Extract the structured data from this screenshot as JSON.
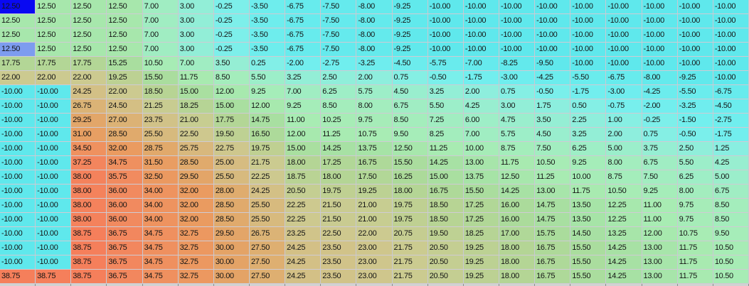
{
  "chart_data": {
    "type": "heatmap",
    "rows": 20,
    "cols": 21,
    "value_format": "two_decimals",
    "values": [
      [
        12.5,
        12.5,
        12.5,
        12.5,
        7.0,
        3.0,
        -0.25,
        -3.5,
        -6.75,
        -7.5,
        -8.0,
        -9.25,
        -10.0,
        -10.0,
        -10.0,
        -10.0,
        -10.0,
        -10.0,
        -10.0,
        -10.0,
        -10.0
      ],
      [
        12.5,
        12.5,
        12.5,
        12.5,
        7.0,
        3.0,
        -0.25,
        -3.5,
        -6.75,
        -7.5,
        -8.0,
        -9.25,
        -10.0,
        -10.0,
        -10.0,
        -10.0,
        -10.0,
        -10.0,
        -10.0,
        -10.0,
        -10.0
      ],
      [
        12.5,
        12.5,
        12.5,
        12.5,
        7.0,
        3.0,
        -0.25,
        -3.5,
        -6.75,
        -7.5,
        -8.0,
        -9.25,
        -10.0,
        -10.0,
        -10.0,
        -10.0,
        -10.0,
        -10.0,
        -10.0,
        -10.0,
        -10.0
      ],
      [
        12.5,
        12.5,
        12.5,
        12.5,
        7.0,
        3.0,
        -0.25,
        -3.5,
        -6.75,
        -7.5,
        -8.0,
        -9.25,
        -10.0,
        -10.0,
        -10.0,
        -10.0,
        -10.0,
        -10.0,
        -10.0,
        -10.0,
        -10.0
      ],
      [
        17.75,
        17.75,
        17.75,
        15.25,
        10.5,
        7.0,
        3.5,
        0.25,
        -2.0,
        -2.75,
        -3.25,
        -4.5,
        -5.75,
        -7.0,
        -8.25,
        -9.5,
        -10.0,
        -10.0,
        -10.0,
        -10.0,
        -10.0
      ],
      [
        22.0,
        22.0,
        22.0,
        19.25,
        15.5,
        11.75,
        8.5,
        5.5,
        3.25,
        2.5,
        2.0,
        0.75,
        -0.5,
        -1.75,
        -3.0,
        -4.25,
        -5.5,
        -6.75,
        -8.0,
        -9.25,
        -10.0
      ],
      [
        -10.0,
        -10.0,
        24.25,
        22.0,
        18.5,
        15.0,
        12.0,
        9.25,
        7.0,
        6.25,
        5.75,
        4.5,
        3.25,
        2.0,
        0.75,
        -0.5,
        -1.75,
        -3.0,
        -4.25,
        -5.5,
        -6.75
      ],
      [
        -10.0,
        -10.0,
        26.75,
        24.5,
        21.25,
        18.25,
        15.0,
        12.0,
        9.25,
        8.5,
        8.0,
        6.75,
        5.5,
        4.25,
        3.0,
        1.75,
        0.5,
        -0.75,
        -2.0,
        -3.25,
        -4.5
      ],
      [
        -10.0,
        -10.0,
        29.25,
        27.0,
        23.75,
        21.0,
        17.75,
        14.75,
        11.0,
        10.25,
        9.75,
        8.5,
        7.25,
        6.0,
        4.75,
        3.5,
        2.25,
        1.0,
        -0.25,
        -1.5,
        -2.75
      ],
      [
        -10.0,
        -10.0,
        31.0,
        28.5,
        25.5,
        22.5,
        19.5,
        16.5,
        12.0,
        11.25,
        10.75,
        9.5,
        8.25,
        7.0,
        5.75,
        4.5,
        3.25,
        2.0,
        0.75,
        -0.5,
        -1.75
      ],
      [
        -10.0,
        -10.0,
        34.5,
        32.0,
        28.75,
        25.75,
        22.75,
        19.75,
        15.0,
        14.25,
        13.75,
        12.5,
        11.25,
        10.0,
        8.75,
        7.5,
        6.25,
        5.0,
        3.75,
        2.5,
        1.25
      ],
      [
        -10.0,
        -10.0,
        37.25,
        34.75,
        31.5,
        28.5,
        25.0,
        21.75,
        18.0,
        17.25,
        16.75,
        15.5,
        14.25,
        13.0,
        11.75,
        10.5,
        9.25,
        8.0,
        6.75,
        5.5,
        4.25
      ],
      [
        -10.0,
        -10.0,
        38.0,
        35.75,
        32.5,
        29.5,
        25.5,
        22.25,
        18.75,
        18.0,
        17.5,
        16.25,
        15.0,
        13.75,
        12.5,
        11.25,
        10.0,
        8.75,
        7.5,
        6.25,
        5.0
      ],
      [
        -10.0,
        -10.0,
        38.0,
        36.0,
        34.0,
        32.0,
        28.0,
        24.25,
        20.5,
        19.75,
        19.25,
        18.0,
        16.75,
        15.5,
        14.25,
        13.0,
        11.75,
        10.5,
        9.25,
        8.0,
        6.75
      ],
      [
        -10.0,
        -10.0,
        38.0,
        36.0,
        34.0,
        32.0,
        28.5,
        25.5,
        22.25,
        21.5,
        21.0,
        19.75,
        18.5,
        17.25,
        16.0,
        14.75,
        13.5,
        12.25,
        11.0,
        9.75,
        8.5
      ],
      [
        -10.0,
        -10.0,
        38.0,
        36.0,
        34.0,
        32.0,
        28.5,
        25.5,
        22.25,
        21.5,
        21.0,
        19.75,
        18.5,
        17.25,
        16.0,
        14.75,
        13.5,
        12.25,
        11.0,
        9.75,
        8.5
      ],
      [
        -10.0,
        -10.0,
        38.75,
        36.75,
        34.75,
        32.75,
        29.5,
        26.75,
        23.25,
        22.5,
        22.0,
        20.75,
        19.5,
        18.25,
        17.0,
        15.75,
        14.5,
        13.25,
        12.0,
        10.75,
        9.5
      ],
      [
        -10.0,
        -10.0,
        38.75,
        36.75,
        34.75,
        32.75,
        30.0,
        27.5,
        24.25,
        23.5,
        23.0,
        21.75,
        20.5,
        19.25,
        18.0,
        16.75,
        15.5,
        14.25,
        13.0,
        11.75,
        10.5
      ],
      [
        -10.0,
        -10.0,
        38.75,
        36.75,
        34.75,
        32.75,
        30.0,
        27.5,
        24.25,
        23.5,
        23.0,
        21.75,
        20.5,
        19.25,
        18.0,
        16.75,
        15.5,
        14.25,
        13.0,
        11.75,
        10.5
      ],
      [
        38.75,
        38.75,
        38.75,
        36.75,
        34.75,
        32.75,
        30.0,
        27.5,
        24.25,
        23.5,
        23.0,
        21.75,
        20.5,
        19.25,
        18.0,
        16.75,
        15.5,
        14.25,
        13.0,
        11.75,
        10.5
      ]
    ],
    "colormap_stops": [
      {
        "v": -10.0,
        "c": "#5FE8EC"
      },
      {
        "v": -1.0,
        "c": "#74EFEE"
      },
      {
        "v": 0.0,
        "c": "#80EFE8"
      },
      {
        "v": 2.0,
        "c": "#8EEEDD"
      },
      {
        "v": 5.0,
        "c": "#9BEECB"
      },
      {
        "v": 8.0,
        "c": "#A3EDBE"
      },
      {
        "v": 11.0,
        "c": "#A8ECB3"
      },
      {
        "v": 14.0,
        "c": "#A6E2A5"
      },
      {
        "v": 16.0,
        "c": "#ABDB9B"
      },
      {
        "v": 18.0,
        "c": "#B4D595"
      },
      {
        "v": 20.0,
        "c": "#C1CF92"
      },
      {
        "v": 22.0,
        "c": "#CCCA90"
      },
      {
        "v": 24.0,
        "c": "#D2C187"
      },
      {
        "v": 26.0,
        "c": "#D9B77B"
      },
      {
        "v": 28.0,
        "c": "#DFAC6E"
      },
      {
        "v": 30.0,
        "c": "#E4A366"
      },
      {
        "v": 32.0,
        "c": "#EA9B60"
      },
      {
        "v": 34.0,
        "c": "#EE935F"
      },
      {
        "v": 36.0,
        "c": "#F18A5F"
      },
      {
        "v": 38.75,
        "c": "#F57F5B"
      }
    ],
    "selected_cell": {
      "row": 0,
      "col": 0,
      "value": 12.5,
      "background": "#0909F2"
    },
    "highlight_cell": {
      "row": 3,
      "col": 0,
      "value": 12.5,
      "background": "#7D9CEF"
    },
    "text_color": "#141414",
    "gridline_color": "#C9C9D2",
    "footer_strip_color": "#D2D2D2",
    "footer_tick_color": "#8F8F8F",
    "legend_position": "none",
    "grid": true
  }
}
